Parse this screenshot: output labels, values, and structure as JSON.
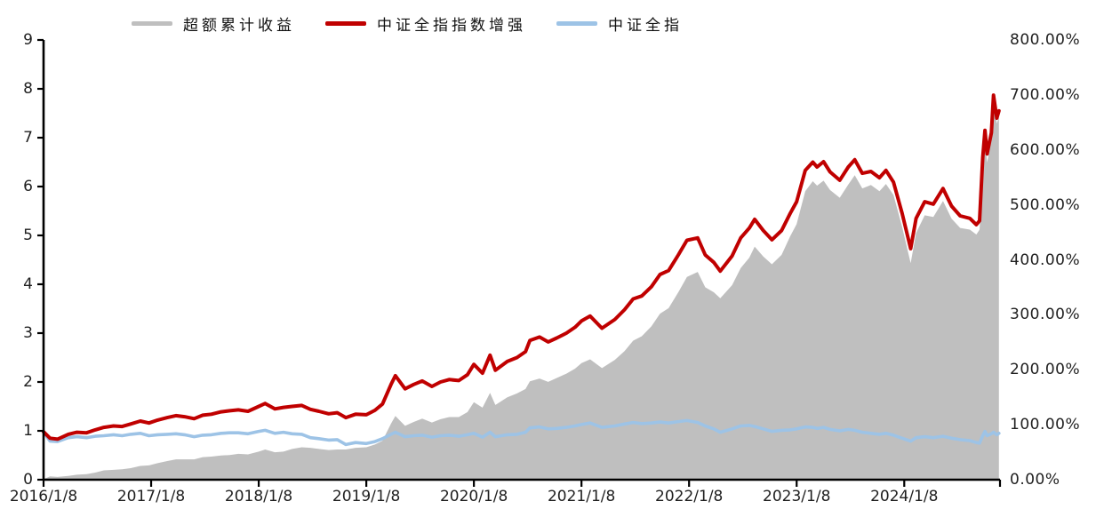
{
  "legend": {
    "items": [
      {
        "label": "超额累计收益",
        "color": "#BFBFBF",
        "name": "excess-cumulative-return"
      },
      {
        "label": "中证全指指数增强",
        "color": "#C00000",
        "name": "csi-all-share-index-enhanced"
      },
      {
        "label": "中证全指",
        "color": "#9DC3E6",
        "name": "csi-all-share-index"
      }
    ]
  },
  "left_axis": {
    "ticks": [
      "0",
      "1",
      "2",
      "3",
      "4",
      "5",
      "6",
      "7",
      "8",
      "9"
    ]
  },
  "right_axis": {
    "ticks": [
      "0.00%",
      "100.00%",
      "200.00%",
      "300.00%",
      "400.00%",
      "500.00%",
      "600.00%",
      "700.00%",
      "800.00%"
    ]
  },
  "x_axis": {
    "ticks": [
      "2016/1/8",
      "2017/1/8",
      "2018/1/8",
      "2019/1/8",
      "2020/1/8",
      "2021/1/8",
      "2022/1/8",
      "2023/1/8",
      "2024/1/8"
    ]
  },
  "chart_data": {
    "type": "area+line combo",
    "title": "",
    "x_unit": "decimal-year (dates 2016/1/8 through late Nov 2024)",
    "x_range": [
      2016.02,
      2024.91
    ],
    "left_axis_range": [
      0,
      9
    ],
    "right_axis_range": [
      0,
      800
    ],
    "grid": false,
    "legend_position": "top",
    "x": [
      2016.02,
      2016.08,
      2016.15,
      2016.25,
      2016.33,
      2016.42,
      2016.5,
      2016.58,
      2016.67,
      2016.75,
      2016.83,
      2016.92,
      2017.0,
      2017.08,
      2017.17,
      2017.25,
      2017.33,
      2017.42,
      2017.5,
      2017.58,
      2017.67,
      2017.75,
      2017.83,
      2017.92,
      2018.02,
      2018.08,
      2018.17,
      2018.25,
      2018.33,
      2018.42,
      2018.5,
      2018.58,
      2018.67,
      2018.75,
      2018.83,
      2018.92,
      2019.02,
      2019.1,
      2019.17,
      2019.25,
      2019.29,
      2019.38,
      2019.46,
      2019.54,
      2019.63,
      2019.71,
      2019.79,
      2019.88,
      2019.96,
      2020.02,
      2020.1,
      2020.17,
      2020.22,
      2020.33,
      2020.42,
      2020.5,
      2020.54,
      2020.63,
      2020.71,
      2020.79,
      2020.88,
      2020.96,
      2021.02,
      2021.1,
      2021.21,
      2021.33,
      2021.42,
      2021.5,
      2021.58,
      2021.67,
      2021.75,
      2021.83,
      2021.92,
      2022.0,
      2022.1,
      2022.17,
      2022.25,
      2022.31,
      2022.42,
      2022.5,
      2022.58,
      2022.63,
      2022.71,
      2022.79,
      2022.88,
      2022.96,
      2023.02,
      2023.1,
      2023.17,
      2023.21,
      2023.27,
      2023.33,
      2023.42,
      2023.5,
      2023.56,
      2023.63,
      2023.71,
      2023.79,
      2023.85,
      2023.92,
      2024.0,
      2024.08,
      2024.13,
      2024.21,
      2024.29,
      2024.38,
      2024.46,
      2024.54,
      2024.63,
      2024.69,
      2024.72,
      2024.75,
      2024.77,
      2024.79,
      2024.83,
      2024.85,
      2024.88,
      2024.9
    ],
    "series": [
      {
        "name": "超额累计收益",
        "type": "area",
        "axis": "right",
        "unit": "%",
        "color": "#BFBFBF",
        "values": [
          1,
          6,
          5,
          7,
          9,
          10,
          13,
          17,
          18,
          19,
          21,
          25,
          26,
          30,
          34,
          37,
          37,
          37,
          41,
          42,
          44,
          45,
          47,
          46,
          51,
          55,
          50,
          51,
          56,
          59,
          58,
          56,
          54,
          55,
          55,
          58,
          59,
          64,
          71,
          102,
          116,
          98,
          105,
          111,
          104,
          110,
          114,
          114,
          123,
          141,
          131,
          158,
          136,
          150,
          157,
          165,
          179,
          184,
          178,
          185,
          193,
          202,
          212,
          219,
          203,
          218,
          234,
          253,
          261,
          279,
          302,
          312,
          341,
          369,
          378,
          350,
          341,
          330,
          354,
          385,
          404,
          424,
          406,
          392,
          409,
          443,
          465,
          525,
          543,
          535,
          544,
          527,
          513,
          537,
          554,
          530,
          536,
          525,
          538,
          518,
          460,
          394,
          449,
          481,
          478,
          507,
          475,
          458,
          455,
          446,
          455,
          570,
          616,
          577,
          616,
          690,
          648,
          660
        ]
      },
      {
        "name": "中证全指指数增强",
        "type": "line",
        "axis": "left",
        "color": "#C00000",
        "values": [
          0.98,
          0.85,
          0.83,
          0.93,
          0.97,
          0.96,
          1.02,
          1.07,
          1.1,
          1.09,
          1.14,
          1.2,
          1.16,
          1.22,
          1.27,
          1.31,
          1.29,
          1.25,
          1.32,
          1.34,
          1.39,
          1.41,
          1.43,
          1.4,
          1.5,
          1.56,
          1.45,
          1.48,
          1.5,
          1.52,
          1.44,
          1.4,
          1.35,
          1.37,
          1.27,
          1.34,
          1.33,
          1.42,
          1.55,
          1.95,
          2.13,
          1.86,
          1.95,
          2.02,
          1.91,
          2.0,
          2.05,
          2.03,
          2.15,
          2.36,
          2.18,
          2.55,
          2.24,
          2.42,
          2.5,
          2.62,
          2.85,
          2.92,
          2.82,
          2.9,
          3.0,
          3.12,
          3.25,
          3.35,
          3.1,
          3.28,
          3.48,
          3.7,
          3.76,
          3.95,
          4.2,
          4.28,
          4.6,
          4.9,
          4.95,
          4.6,
          4.45,
          4.27,
          4.58,
          4.95,
          5.15,
          5.33,
          5.1,
          4.91,
          5.1,
          5.45,
          5.69,
          6.33,
          6.5,
          6.4,
          6.51,
          6.3,
          6.13,
          6.4,
          6.55,
          6.27,
          6.31,
          6.18,
          6.33,
          6.09,
          5.45,
          4.73,
          5.35,
          5.69,
          5.64,
          5.96,
          5.6,
          5.4,
          5.35,
          5.22,
          5.3,
          6.6,
          7.15,
          6.67,
          7.1,
          7.87,
          7.4,
          7.55
        ]
      },
      {
        "name": "中证全指",
        "type": "line",
        "axis": "left",
        "color": "#9DC3E6",
        "values": [
          0.97,
          0.79,
          0.78,
          0.86,
          0.88,
          0.86,
          0.89,
          0.9,
          0.92,
          0.9,
          0.93,
          0.95,
          0.9,
          0.92,
          0.93,
          0.94,
          0.92,
          0.88,
          0.91,
          0.92,
          0.95,
          0.96,
          0.96,
          0.94,
          0.99,
          1.01,
          0.95,
          0.97,
          0.94,
          0.93,
          0.86,
          0.84,
          0.81,
          0.82,
          0.72,
          0.76,
          0.74,
          0.78,
          0.84,
          0.93,
          0.97,
          0.88,
          0.9,
          0.91,
          0.87,
          0.9,
          0.91,
          0.89,
          0.92,
          0.95,
          0.87,
          0.97,
          0.88,
          0.92,
          0.93,
          0.97,
          1.06,
          1.08,
          1.04,
          1.05,
          1.07,
          1.1,
          1.13,
          1.16,
          1.07,
          1.1,
          1.14,
          1.17,
          1.15,
          1.16,
          1.18,
          1.16,
          1.19,
          1.21,
          1.17,
          1.1,
          1.04,
          0.97,
          1.04,
          1.1,
          1.11,
          1.09,
          1.04,
          0.99,
          1.01,
          1.02,
          1.04,
          1.08,
          1.07,
          1.05,
          1.07,
          1.03,
          1.0,
          1.03,
          1.01,
          0.97,
          0.95,
          0.93,
          0.95,
          0.91,
          0.85,
          0.79,
          0.86,
          0.88,
          0.86,
          0.89,
          0.85,
          0.82,
          0.8,
          0.76,
          0.75,
          0.9,
          0.99,
          0.9,
          0.94,
          0.97,
          0.92,
          0.95
        ]
      }
    ]
  }
}
